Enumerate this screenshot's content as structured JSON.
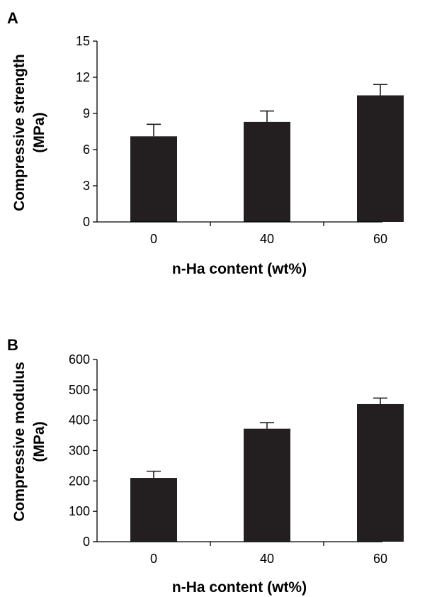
{
  "chart_data": [
    {
      "panel": "A",
      "type": "bar",
      "categories": [
        "0",
        "40",
        "60"
      ],
      "values": [
        7.1,
        8.3,
        10.5
      ],
      "errors": [
        1.0,
        0.9,
        0.9
      ],
      "xlabel": "n-Ha content (wt%)",
      "ylabel_lines": [
        "Compressive strength",
        "(MPa)"
      ],
      "ylim": [
        0,
        15
      ],
      "yticks": [
        "0",
        "3",
        "6",
        "9",
        "12",
        "15"
      ],
      "grid": false,
      "legend": "none",
      "bar_color": "#231f20"
    },
    {
      "panel": "B",
      "type": "bar",
      "categories": [
        "0",
        "40",
        "60"
      ],
      "values": [
        210,
        372,
        453
      ],
      "errors": [
        22,
        20,
        20
      ],
      "xlabel": "n-Ha content (wt%)",
      "ylabel_lines": [
        "Compressive modulus",
        "(MPa)"
      ],
      "ylim": [
        0,
        600
      ],
      "yticks": [
        "0",
        "100",
        "200",
        "300",
        "400",
        "500",
        "600"
      ],
      "grid": false,
      "legend": "none",
      "bar_color": "#231f20"
    }
  ]
}
